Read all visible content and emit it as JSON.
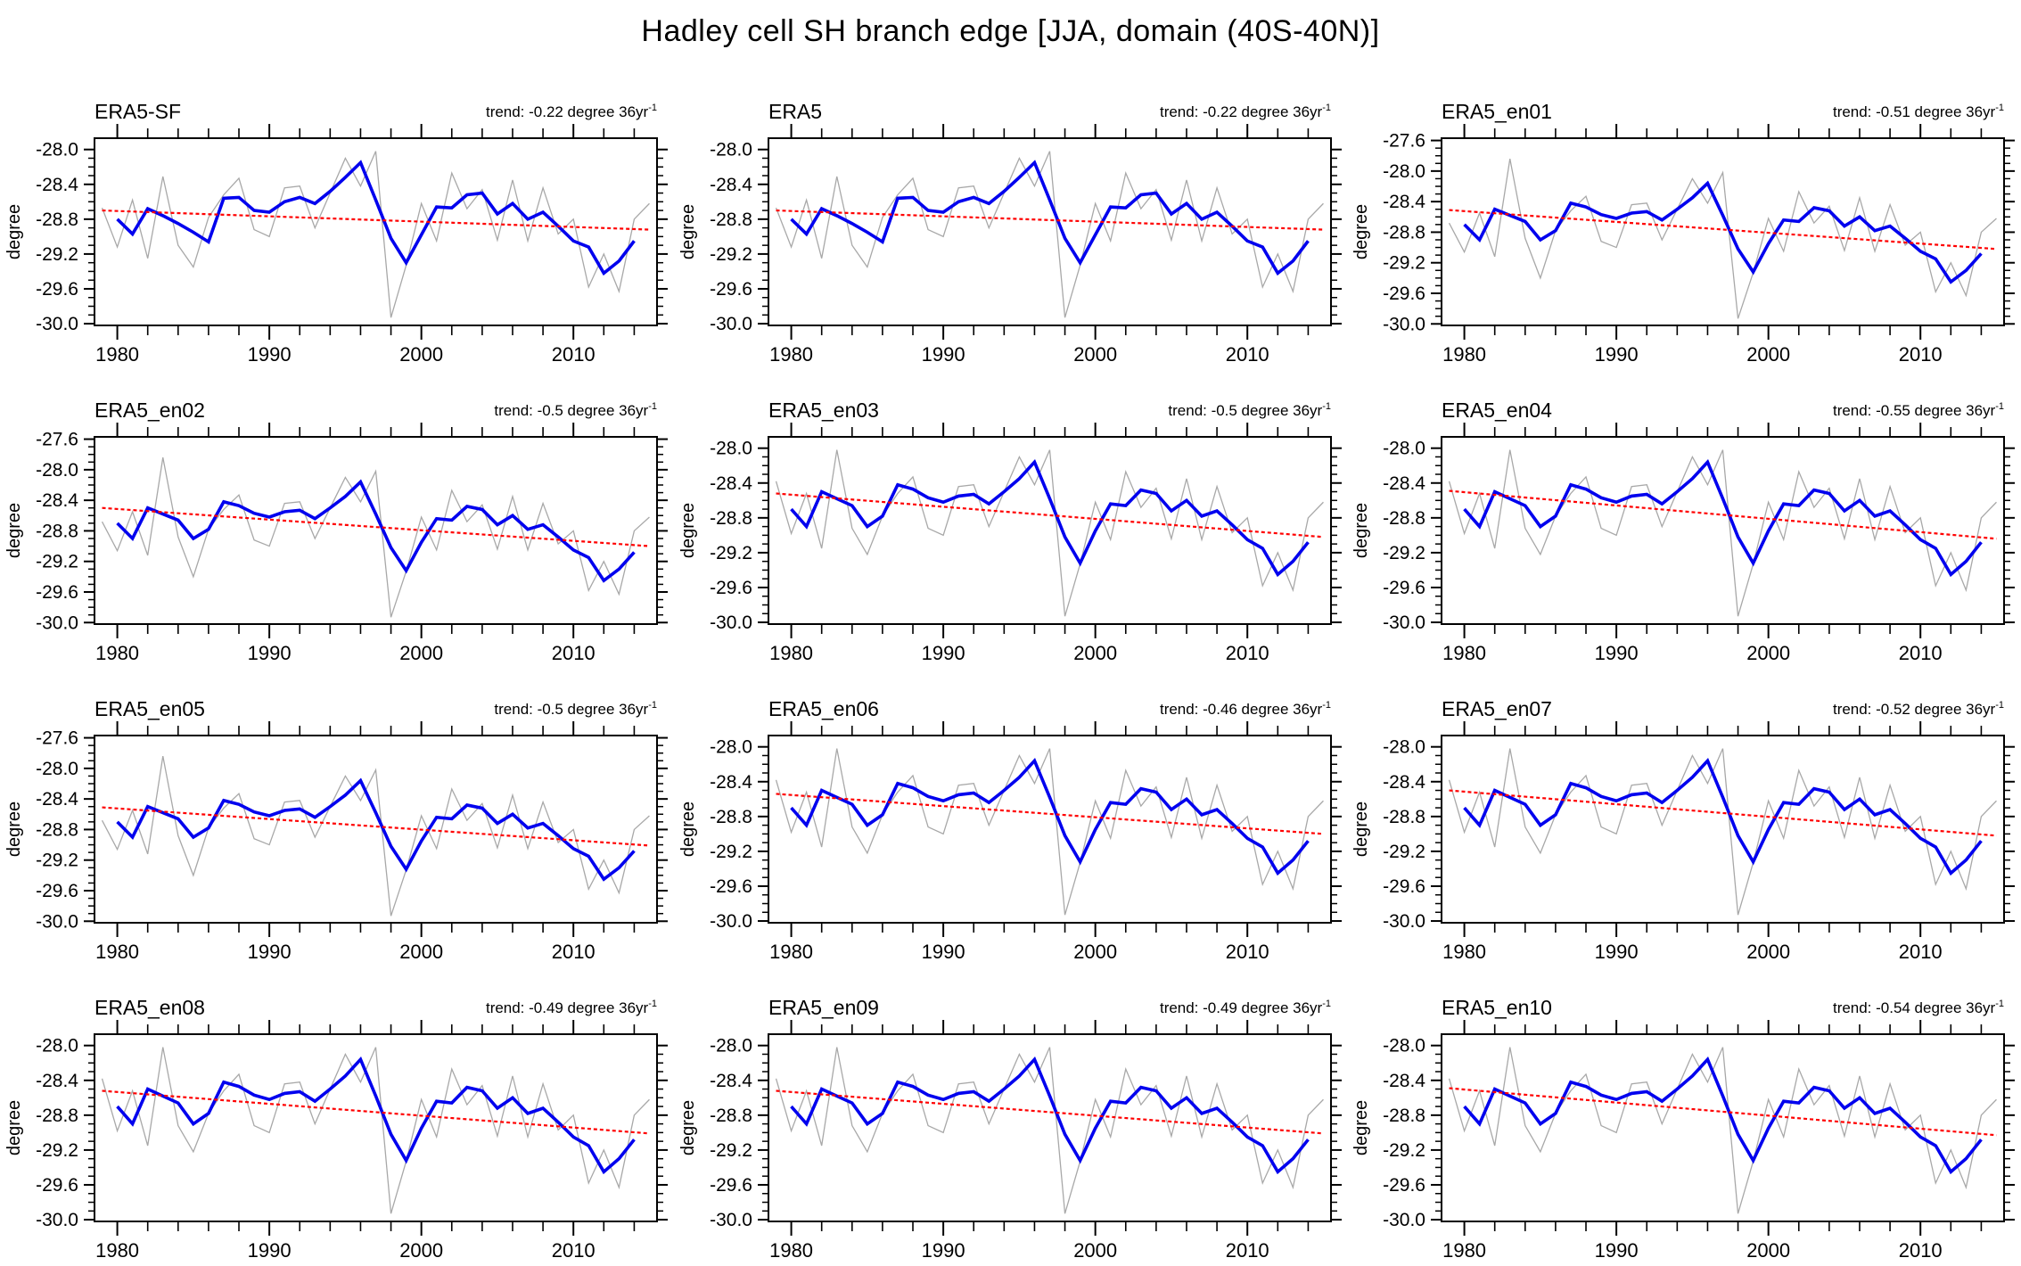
{
  "title": "Hadley cell SH branch edge [JJA, domain (40S-40N)]",
  "chart_data": {
    "type": "line",
    "layout_hint": "12 small-multiple time-series panels in a 4x3 grid, no gridlines, ticks outward on all four sides",
    "x": {
      "domain": [
        1978.5,
        2015.5
      ],
      "raw_year_range": [
        1979,
        2015
      ],
      "smoothed_year_range": [
        1980,
        2014
      ],
      "trend_year_range": [
        1979,
        2015
      ],
      "minor_tick_step_years": 2,
      "tick_label_years": [
        1980,
        1990,
        2000,
        2010
      ],
      "tick_labels": [
        "1980",
        "1990",
        "2000",
        "2010"
      ]
    },
    "y": {
      "label": "degree",
      "minor_step": 0.1,
      "variants": {
        "std": {
          "domain": [
            -27.87,
            -30.02
          ],
          "tick_values": [
            -28.0,
            -28.4,
            -28.8,
            -29.2,
            -29.6,
            -30.0
          ],
          "tick_labels": [
            "-28.0",
            "-28.4",
            "-28.8",
            "-29.2",
            "-29.6",
            "-30.0"
          ]
        },
        "tall": {
          "domain": [
            -27.57,
            -30.02
          ],
          "tick_values": [
            -27.6,
            -28.0,
            -28.4,
            -28.8,
            -29.2,
            -29.6,
            -30.0
          ],
          "tick_labels": [
            "-27.6",
            "-28.0",
            "-28.4",
            "-28.8",
            "-29.2",
            "-29.6",
            "-30.0"
          ]
        }
      }
    },
    "series_colors": {
      "raw": "#a8a8a8",
      "smoothed": "#0000ee",
      "trend": "#ff0000"
    },
    "trend_label_parts": {
      "prefix": "trend: ",
      "suffix": " degree 36yr",
      "superscript": "-1"
    },
    "series": {
      "gray_sf": [
        -28.67,
        -29.12,
        -28.58,
        -29.25,
        -28.31,
        -29.1,
        -29.35,
        -28.78,
        -28.52,
        -28.33,
        -28.92,
        -29.0,
        -28.44,
        -28.42,
        -28.9,
        -28.5,
        -28.1,
        -28.42,
        -28.02,
        -29.93,
        -29.33,
        -28.62,
        -29.05,
        -28.27,
        -28.68,
        -28.46,
        -29.04,
        -28.35,
        -29.05,
        -28.44,
        -28.97,
        -28.8,
        -29.58,
        -29.2,
        -29.63,
        -28.8,
        -28.62
      ],
      "gray_tall": [
        -28.68,
        -29.06,
        -28.55,
        -29.12,
        -27.84,
        -28.88,
        -29.4,
        -28.78,
        -28.52,
        -28.33,
        -28.92,
        -29.0,
        -28.44,
        -28.42,
        -28.9,
        -28.5,
        -28.1,
        -28.42,
        -28.02,
        -29.93,
        -29.33,
        -28.62,
        -29.05,
        -28.27,
        -28.68,
        -28.46,
        -29.04,
        -28.35,
        -29.05,
        -28.44,
        -28.97,
        -28.8,
        -29.58,
        -29.2,
        -29.63,
        -28.8,
        -28.62
      ],
      "gray_std": [
        -28.38,
        -28.98,
        -28.52,
        -29.15,
        -28.02,
        -28.92,
        -29.22,
        -28.78,
        -28.52,
        -28.33,
        -28.92,
        -29.0,
        -28.44,
        -28.42,
        -28.9,
        -28.5,
        -28.1,
        -28.42,
        -28.02,
        -29.93,
        -29.33,
        -28.62,
        -29.05,
        -28.27,
        -28.68,
        -28.46,
        -29.04,
        -28.35,
        -29.05,
        -28.44,
        -28.97,
        -28.8,
        -29.58,
        -29.2,
        -29.63,
        -28.8,
        -28.62
      ],
      "blue_sf": [
        -28.8,
        -28.97,
        -28.68,
        -28.76,
        -28.85,
        -28.95,
        -29.06,
        -28.56,
        -28.55,
        -28.7,
        -28.72,
        -28.6,
        -28.55,
        -28.62,
        -28.48,
        -28.32,
        -28.15,
        -28.58,
        -29.02,
        -29.3,
        -28.98,
        -28.66,
        -28.67,
        -28.52,
        -28.5,
        -28.74,
        -28.62,
        -28.8,
        -28.72,
        -28.88,
        -29.05,
        -29.12,
        -29.42,
        -29.28,
        -29.05
      ],
      "blue_ens": [
        -28.7,
        -28.9,
        -28.5,
        -28.58,
        -28.66,
        -28.9,
        -28.78,
        -28.42,
        -28.47,
        -28.57,
        -28.62,
        -28.55,
        -28.53,
        -28.64,
        -28.5,
        -28.35,
        -28.16,
        -28.58,
        -29.02,
        -29.32,
        -28.95,
        -28.64,
        -28.66,
        -28.48,
        -28.52,
        -28.72,
        -28.6,
        -28.78,
        -28.72,
        -28.88,
        -29.05,
        -29.15,
        -29.45,
        -29.3,
        -29.08
      ]
    },
    "panels": [
      {
        "name": "ERA5-SF",
        "trend_value": "-0.22",
        "trend_per_36yr": -0.22,
        "y_variant": "std",
        "raw_series": "gray_sf",
        "smoothed_series": "blue_sf",
        "trend_line": {
          "start_value": -28.7,
          "end_value": -28.92
        }
      },
      {
        "name": "ERA5",
        "trend_value": "-0.22",
        "trend_per_36yr": -0.22,
        "y_variant": "std",
        "raw_series": "gray_sf",
        "smoothed_series": "blue_sf",
        "trend_line": {
          "start_value": -28.7,
          "end_value": -28.92
        }
      },
      {
        "name": "ERA5_en01",
        "trend_value": "-0.51",
        "trend_per_36yr": -0.51,
        "y_variant": "tall",
        "raw_series": "gray_tall",
        "smoothed_series": "blue_ens",
        "trend_line": {
          "start_value": -28.51,
          "end_value": -29.02
        }
      },
      {
        "name": "ERA5_en02",
        "trend_value": "-0.5",
        "trend_per_36yr": -0.5,
        "y_variant": "tall",
        "raw_series": "gray_tall",
        "smoothed_series": "blue_ens",
        "trend_line": {
          "start_value": -28.5,
          "end_value": -29.0
        }
      },
      {
        "name": "ERA5_en03",
        "trend_value": "-0.5",
        "trend_per_36yr": -0.5,
        "y_variant": "std",
        "raw_series": "gray_std",
        "smoothed_series": "blue_ens",
        "trend_line": {
          "start_value": -28.52,
          "end_value": -29.02
        }
      },
      {
        "name": "ERA5_en04",
        "trend_value": "-0.55",
        "trend_per_36yr": -0.55,
        "y_variant": "std",
        "raw_series": "gray_std",
        "smoothed_series": "blue_ens",
        "trend_line": {
          "start_value": -28.49,
          "end_value": -29.04
        }
      },
      {
        "name": "ERA5_en05",
        "trend_value": "-0.5",
        "trend_per_36yr": -0.5,
        "y_variant": "tall",
        "raw_series": "gray_tall",
        "smoothed_series": "blue_ens",
        "trend_line": {
          "start_value": -28.51,
          "end_value": -29.01
        }
      },
      {
        "name": "ERA5_en06",
        "trend_value": "-0.46",
        "trend_per_36yr": -0.46,
        "y_variant": "std",
        "raw_series": "gray_std",
        "smoothed_series": "blue_ens",
        "trend_line": {
          "start_value": -28.54,
          "end_value": -29.0
        }
      },
      {
        "name": "ERA5_en07",
        "trend_value": "-0.52",
        "trend_per_36yr": -0.52,
        "y_variant": "std",
        "raw_series": "gray_std",
        "smoothed_series": "blue_ens",
        "trend_line": {
          "start_value": -28.5,
          "end_value": -29.02
        }
      },
      {
        "name": "ERA5_en08",
        "trend_value": "-0.49",
        "trend_per_36yr": -0.49,
        "y_variant": "std",
        "raw_series": "gray_std",
        "smoothed_series": "blue_ens",
        "trend_line": {
          "start_value": -28.52,
          "end_value": -29.01
        }
      },
      {
        "name": "ERA5_en09",
        "trend_value": "-0.49",
        "trend_per_36yr": -0.49,
        "y_variant": "std",
        "raw_series": "gray_std",
        "smoothed_series": "blue_ens",
        "trend_line": {
          "start_value": -28.52,
          "end_value": -29.01
        }
      },
      {
        "name": "ERA5_en10",
        "trend_value": "-0.54",
        "trend_per_36yr": -0.54,
        "y_variant": "std",
        "raw_series": "gray_std",
        "smoothed_series": "blue_ens",
        "trend_line": {
          "start_value": -28.49,
          "end_value": -29.03
        }
      }
    ]
  }
}
